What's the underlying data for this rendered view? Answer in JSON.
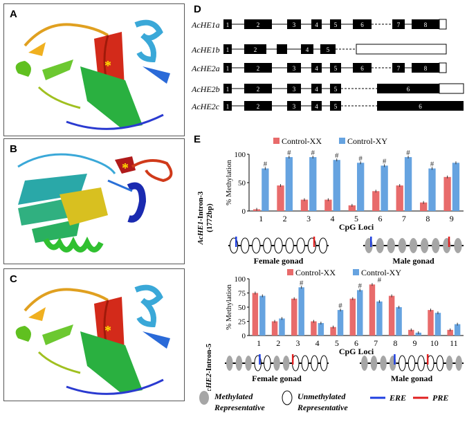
{
  "panels": {
    "A": {
      "label": "A"
    },
    "B": {
      "label": "B"
    },
    "C": {
      "label": "C"
    },
    "D": {
      "label": "D"
    },
    "E": {
      "label": "E"
    }
  },
  "star": "*",
  "gene_structures": [
    {
      "name": "AcHE1a",
      "exons": [
        "1",
        "2",
        "3",
        "4",
        "5",
        "6",
        "7",
        "8"
      ]
    },
    {
      "name": "AcHE1b",
      "exons": [
        "1",
        "2",
        "",
        "4",
        "5"
      ]
    },
    {
      "name": "AcHE2a",
      "exons": [
        "1",
        "2",
        "3",
        "4",
        "5",
        "6",
        "7",
        "8"
      ]
    },
    {
      "name": "AcHE2b",
      "exons": [
        "1",
        "2",
        "3",
        "4",
        "5",
        "6"
      ]
    },
    {
      "name": "AcHE2c",
      "exons": [
        "1",
        "2",
        "3",
        "4",
        "5",
        "6"
      ]
    }
  ],
  "legend": {
    "methylated": "Methylated",
    "unmethylated": "Unmethylated",
    "representative": "Representative",
    "ere": "ERE",
    "pre": "PRE"
  },
  "colors": {
    "xx": "#e86b6b",
    "xy": "#66a3e0",
    "ere": "#1f3fe0",
    "pre": "#e02020",
    "methyl": "#a6a6a6"
  },
  "chart_data": [
    {
      "type": "bar",
      "ylabel": "% Methylation",
      "xlabel": "CpG Loci",
      "side_label": "AcHE1-Intron-3 (1772bp)",
      "side_label_gene": "AcHE1",
      "side_label_rest": "-Intron-3",
      "side_label_bp": "(1772bp)",
      "ylim": [
        0,
        100
      ],
      "yticks": [
        "0",
        "50",
        "100"
      ],
      "categories": [
        "1",
        "2",
        "3",
        "4",
        "5",
        "6",
        "7",
        "8",
        "9"
      ],
      "series": [
        {
          "name": "Control-XX",
          "values": [
            3,
            45,
            20,
            20,
            10,
            35,
            45,
            15,
            60
          ]
        },
        {
          "name": "Control-XY",
          "values": [
            75,
            95,
            95,
            90,
            85,
            80,
            95,
            75,
            85
          ]
        }
      ],
      "significance": [
        "#",
        "#",
        "#",
        "#",
        "#",
        "#",
        "#",
        "#",
        ""
      ],
      "gonads": [
        "Female gonad",
        "Male gonad"
      ]
    },
    {
      "type": "bar",
      "ylabel": "% Methylation",
      "xlabel": "CpG Loci",
      "side_label": "AcHE2-Intron-5",
      "side_label_gene": "AcHE2-",
      "side_label_rest": "Intron-5",
      "ylim": [
        0,
        100
      ],
      "yticks": [
        "0",
        "25",
        "50",
        "75",
        "100"
      ],
      "categories": [
        "1",
        "2",
        "3",
        "4",
        "5",
        "6",
        "7",
        "8",
        "9",
        "10",
        "11"
      ],
      "series": [
        {
          "name": "Control-XX",
          "values": [
            75,
            25,
            65,
            25,
            15,
            65,
            90,
            70,
            10,
            45,
            10
          ]
        },
        {
          "name": "Control-XY",
          "values": [
            70,
            30,
            85,
            22,
            45,
            80,
            60,
            50,
            5,
            40,
            20
          ]
        }
      ],
      "significance": [
        "",
        "",
        "#",
        "",
        "#",
        "#",
        "#",
        "",
        "",
        "",
        ""
      ],
      "gonads": [
        "Female gonad",
        "Male gonad"
      ]
    }
  ]
}
